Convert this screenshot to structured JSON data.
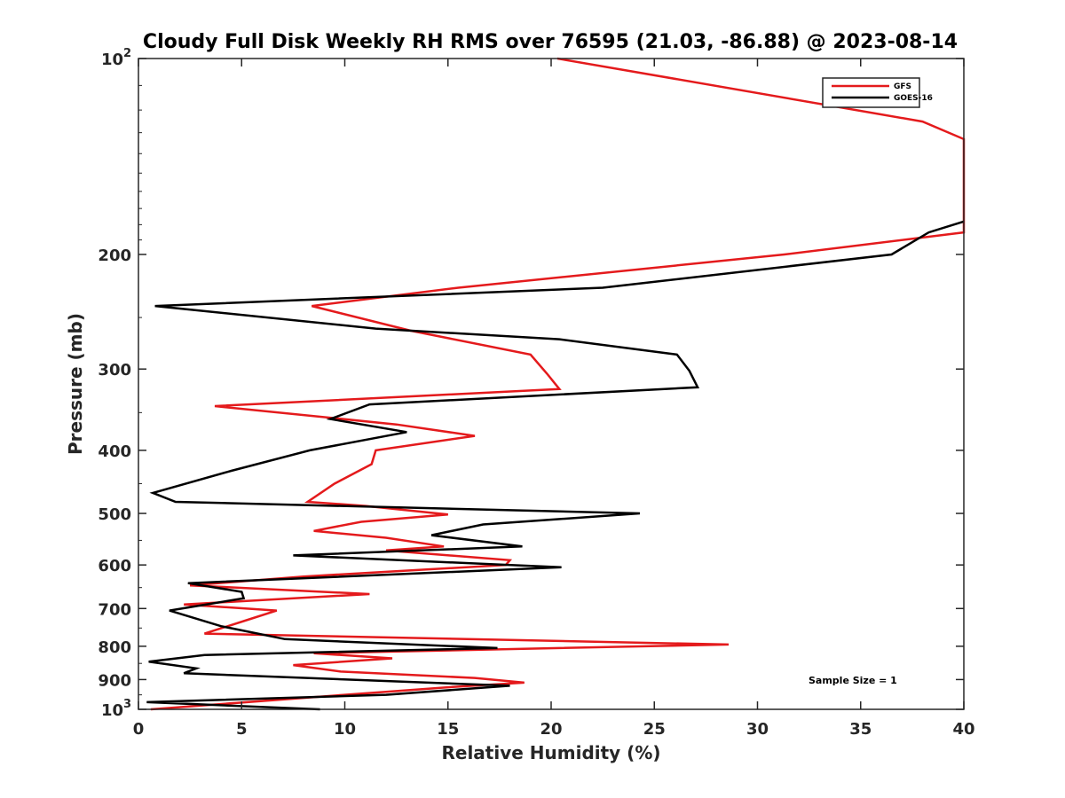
{
  "chart_data": {
    "type": "line",
    "title": "Cloudy Full Disk Weekly RH RMS over 76595 (21.03, -86.88) @ 2023-08-14",
    "xlabel": "Relative Humidity (%)",
    "ylabel": "Pressure (mb)",
    "xlim": [
      0,
      40
    ],
    "ylim": [
      100,
      1000
    ],
    "yscale": "log",
    "y_reversed": true,
    "grid": false,
    "legend_position": "top-right",
    "xticks": [
      0,
      5,
      10,
      15,
      20,
      25,
      30,
      35,
      40
    ],
    "yticks": [
      {
        "value": 100,
        "label": "10",
        "exp": "2"
      },
      {
        "value": 200,
        "label": "200"
      },
      {
        "value": 300,
        "label": "300"
      },
      {
        "value": 400,
        "label": "400"
      },
      {
        "value": 500,
        "label": "500"
      },
      {
        "value": 600,
        "label": "600"
      },
      {
        "value": 700,
        "label": "700"
      },
      {
        "value": 800,
        "label": "800"
      },
      {
        "value": 900,
        "label": "900"
      },
      {
        "value": 1000,
        "label": "10",
        "exp": "3"
      }
    ],
    "annotation": "Sample Size = 1",
    "series": [
      {
        "name": "GFS",
        "color": "#e41a1c",
        "points": [
          [
            20.3,
            100
          ],
          [
            38.0,
            125
          ],
          [
            40.0,
            133
          ],
          [
            40.0,
            185
          ],
          [
            31.3,
            200
          ],
          [
            15.5,
            225
          ],
          [
            8.4,
            240
          ],
          [
            13.2,
            262
          ],
          [
            19.0,
            285
          ],
          [
            19.8,
            305
          ],
          [
            20.4,
            322
          ],
          [
            3.7,
            342
          ],
          [
            12.5,
            365
          ],
          [
            16.3,
            380
          ],
          [
            11.5,
            400
          ],
          [
            11.3,
            420
          ],
          [
            9.5,
            450
          ],
          [
            8.2,
            480
          ],
          [
            11.0,
            487
          ],
          [
            15.0,
            502
          ],
          [
            10.8,
            515
          ],
          [
            8.5,
            532
          ],
          [
            12.0,
            545
          ],
          [
            14.8,
            562
          ],
          [
            12.0,
            570
          ],
          [
            18.0,
            590
          ],
          [
            17.8,
            600
          ],
          [
            8.0,
            625
          ],
          [
            2.5,
            645
          ],
          [
            11.2,
            665
          ],
          [
            2.2,
            690
          ],
          [
            6.7,
            705
          ],
          [
            5.5,
            725
          ],
          [
            3.2,
            765
          ],
          [
            28.6,
            795
          ],
          [
            8.5,
            820
          ],
          [
            12.3,
            835
          ],
          [
            7.5,
            855
          ],
          [
            9.8,
            875
          ],
          [
            16.3,
            895
          ],
          [
            18.7,
            910
          ],
          [
            15.0,
            925
          ],
          [
            10.0,
            950
          ],
          [
            0.6,
            1000
          ]
        ]
      },
      {
        "name": "GOES-16",
        "color": "#000000",
        "points": [
          [
            40.0,
            178
          ],
          [
            38.3,
            185
          ],
          [
            36.5,
            200
          ],
          [
            22.5,
            225
          ],
          [
            0.8,
            240
          ],
          [
            11.5,
            260
          ],
          [
            20.4,
            270
          ],
          [
            26.1,
            285
          ],
          [
            26.7,
            302
          ],
          [
            27.1,
            320
          ],
          [
            11.2,
            340
          ],
          [
            9.3,
            358
          ],
          [
            13.0,
            375
          ],
          [
            8.3,
            400
          ],
          [
            4.5,
            430
          ],
          [
            0.7,
            465
          ],
          [
            1.8,
            480
          ],
          [
            24.3,
            500
          ],
          [
            16.7,
            520
          ],
          [
            14.2,
            540
          ],
          [
            18.6,
            562
          ],
          [
            7.5,
            580
          ],
          [
            20.5,
            605
          ],
          [
            2.4,
            640
          ],
          [
            5.0,
            660
          ],
          [
            5.1,
            675
          ],
          [
            1.5,
            705
          ],
          [
            4.0,
            745
          ],
          [
            7.1,
            780
          ],
          [
            17.4,
            805
          ],
          [
            3.2,
            825
          ],
          [
            0.5,
            845
          ],
          [
            2.8,
            865
          ],
          [
            2.2,
            880
          ],
          [
            18.0,
            920
          ],
          [
            12.0,
            950
          ],
          [
            0.4,
            975
          ],
          [
            8.8,
            1000
          ]
        ]
      }
    ]
  }
}
